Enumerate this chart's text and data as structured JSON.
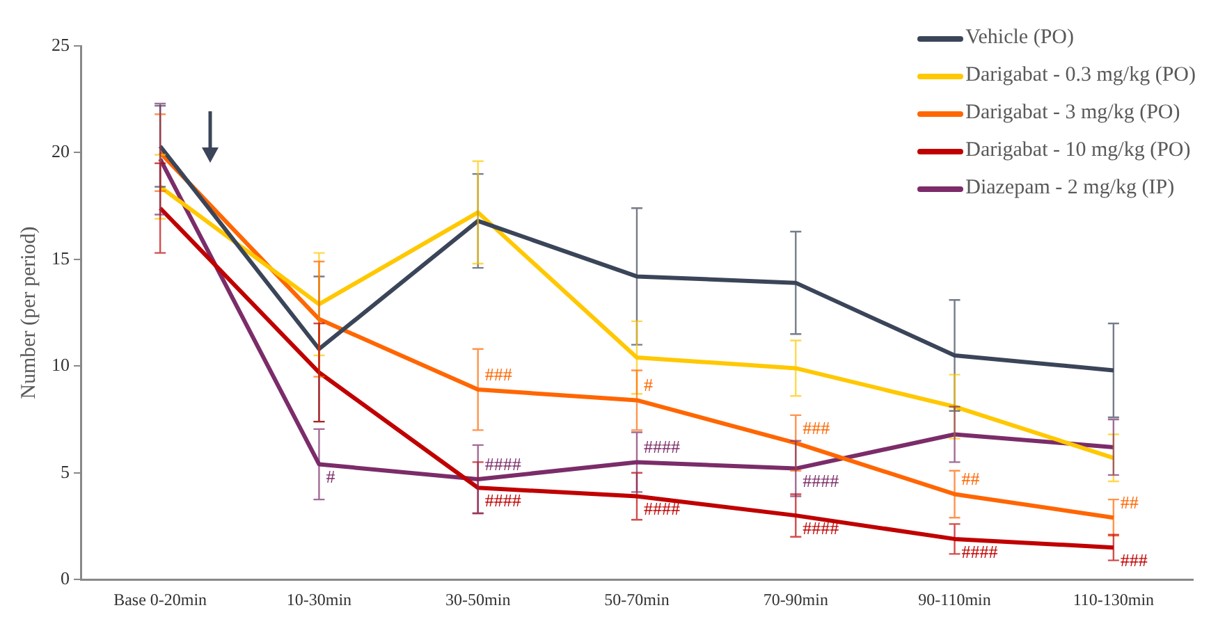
{
  "chart_data": {
    "type": "line",
    "ylabel": "Number (per period)",
    "categories": [
      "Base 0-20min",
      "10-30min",
      "30-50min",
      "50-70min",
      "70-90min",
      "90-110min",
      "110-130min"
    ],
    "series": [
      {
        "name": "Vehicle (PO)",
        "color": "#3b4559",
        "values": [
          20.3,
          10.8,
          16.8,
          14.2,
          13.9,
          10.5,
          9.8
        ],
        "errors": [
          1.9,
          3.4,
          2.2,
          3.2,
          2.4,
          2.6,
          2.2
        ]
      },
      {
        "name": "Darigabat - 0.3 mg/kg (PO)",
        "color": "#ffc800",
        "values": [
          18.4,
          12.9,
          17.2,
          10.4,
          9.9,
          8.1,
          5.7
        ],
        "errors": [
          1.5,
          2.4,
          2.4,
          1.7,
          1.3,
          1.5,
          1.1
        ]
      },
      {
        "name": "Darigabat - 3 mg/kg (PO)",
        "color": "#ff6600",
        "values": [
          20.0,
          12.2,
          8.9,
          8.4,
          6.4,
          4.0,
          2.9
        ],
        "errors": [
          1.8,
          2.7,
          1.9,
          1.4,
          1.3,
          1.1,
          0.85
        ]
      },
      {
        "name": "Darigabat - 10 mg/kg (PO)",
        "color": "#c00000",
        "values": [
          17.4,
          9.7,
          4.3,
          3.9,
          3.0,
          1.9,
          1.5
        ],
        "errors": [
          2.1,
          2.3,
          1.2,
          1.1,
          1.0,
          0.7,
          0.6
        ]
      },
      {
        "name": "Diazepam - 2 mg/kg (IP)",
        "color": "#7b2c69",
        "values": [
          19.7,
          5.4,
          4.7,
          5.5,
          5.2,
          6.8,
          6.2
        ],
        "errors": [
          2.6,
          1.65,
          1.6,
          1.4,
          1.3,
          1.3,
          1.3
        ]
      }
    ],
    "ylim": [
      0,
      25
    ],
    "yticks": [
      0,
      5,
      10,
      15,
      20,
      25
    ],
    "grid": false,
    "legend": "top right",
    "marker": "none",
    "line_style": "solid",
    "annotations": [
      {
        "text": "#",
        "x": "10-30min",
        "y": 5.4
      },
      {
        "text": "###",
        "x": "30-50min",
        "y": 8.9
      },
      {
        "text": "####",
        "x": "30-50min",
        "y": 4.7
      },
      {
        "text": "####",
        "x": "30-50min",
        "y": 4.3
      },
      {
        "text": "#",
        "x": "50-70min",
        "y": 8.4
      },
      {
        "text": "####",
        "x": "50-70min",
        "y": 5.5
      },
      {
        "text": "####",
        "x": "50-70min",
        "y": 3.9
      },
      {
        "text": "###",
        "x": "70-90min",
        "y": 6.4
      },
      {
        "text": "####",
        "x": "70-90min",
        "y": 5.2
      },
      {
        "text": "####",
        "x": "70-90min",
        "y": 3.0
      },
      {
        "text": "##",
        "x": "90-110min",
        "y": 4.0
      },
      {
        "text": "####",
        "x": "90-110min",
        "y": 1.9
      },
      {
        "text": "##",
        "x": "110-130min",
        "y": 2.9
      },
      {
        "text": "###",
        "x": "110-130min",
        "y": 1.5
      }
    ]
  }
}
